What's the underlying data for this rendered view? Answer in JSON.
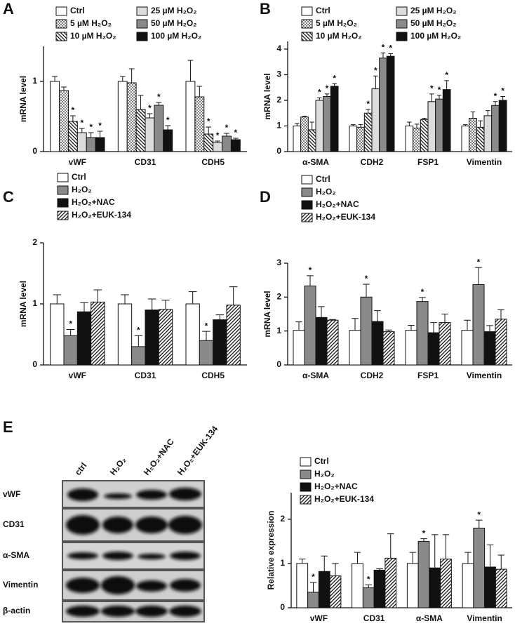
{
  "chart_data": [
    {
      "type": "bar",
      "panel": "A",
      "ylabel": "mRNA level",
      "categories": [
        "vWF",
        "CD31",
        "CDH5"
      ],
      "ylim": [
        0,
        1.5
      ],
      "yticks": [
        0,
        1
      ],
      "series": [
        {
          "name": "Ctrl",
          "color": "#ffffff",
          "values": [
            1,
            1,
            1
          ],
          "errors": [
            0.07,
            0.07,
            0.3
          ],
          "significance": [
            null,
            null,
            null
          ]
        },
        {
          "name": "5 µM H₂O₂",
          "color": "#ffffff",
          "pattern": "dots",
          "values": [
            0.87,
            0.98,
            0.78
          ],
          "errors": [
            0.05,
            0.2,
            0.15
          ],
          "significance": [
            null,
            null,
            null
          ]
        },
        {
          "name": "10 µM H₂O₂",
          "color": "#ffffff",
          "pattern": "hatch-back",
          "values": [
            0.43,
            0.6,
            0.25
          ],
          "errors": [
            0.08,
            0.2,
            0.1
          ],
          "significance": [
            "*",
            null,
            "*"
          ]
        },
        {
          "name": "25 µM H₂O₂",
          "color": "#dcdcdc",
          "values": [
            0.27,
            0.48,
            0.13
          ],
          "errors": [
            0.06,
            0.06,
            0.02
          ],
          "significance": [
            "*",
            "*",
            "*"
          ]
        },
        {
          "name": "50 µM H₂O₂",
          "color": "#8a8a8a",
          "values": [
            0.2,
            0.66,
            0.22
          ],
          "errors": [
            0.07,
            0.04,
            0.04
          ],
          "significance": [
            "*",
            "*",
            "*"
          ]
        },
        {
          "name": "100 µM H₂O₂",
          "color": "#111111",
          "values": [
            0.2,
            0.31,
            0.17
          ],
          "errors": [
            0.09,
            0.06,
            0.02
          ],
          "significance": [
            "*",
            "*",
            "*"
          ]
        }
      ]
    },
    {
      "type": "bar",
      "panel": "B",
      "ylabel": "mRNA level",
      "categories": [
        "α-SMA",
        "CDH2",
        "FSP1",
        "Vimentin"
      ],
      "ylim": [
        0,
        4.3
      ],
      "yticks": [
        0,
        1,
        2,
        3,
        4
      ],
      "series": [
        {
          "name": "Ctrl",
          "color": "#ffffff",
          "values": [
            1,
            1,
            1,
            1
          ],
          "errors": [
            0.1,
            0.05,
            0.15,
            0.05
          ],
          "significance": [
            null,
            null,
            null,
            null
          ]
        },
        {
          "name": "5 µM H₂O₂",
          "color": "#ffffff",
          "pattern": "dots",
          "values": [
            1.35,
            0.95,
            0.92,
            1.3
          ],
          "errors": [
            0.03,
            0.1,
            0.15,
            0.25
          ],
          "significance": [
            null,
            null,
            null,
            null
          ]
        },
        {
          "name": "10 µM H₂O₂",
          "color": "#ffffff",
          "pattern": "hatch-back",
          "values": [
            0.85,
            1.5,
            1.25,
            0.95
          ],
          "errors": [
            0.3,
            0.15,
            0.05,
            0.25
          ],
          "significance": [
            null,
            "*",
            null,
            null
          ]
        },
        {
          "name": "25 µM H₂O₂",
          "color": "#dcdcdc",
          "values": [
            2,
            2.45,
            1.95,
            1.4
          ],
          "errors": [
            0.1,
            0.5,
            0.3,
            0.2
          ],
          "significance": [
            "*",
            "*",
            "*",
            null
          ]
        },
        {
          "name": "50 µM H₂O₂",
          "color": "#8a8a8a",
          "values": [
            2.15,
            3.65,
            2.05,
            1.8
          ],
          "errors": [
            0.1,
            0.2,
            0.15,
            0.15
          ],
          "significance": [
            "*",
            "*",
            "*",
            "*"
          ]
        },
        {
          "name": "100 µM H₂O₂",
          "color": "#111111",
          "values": [
            2.55,
            3.72,
            2.42,
            2
          ],
          "errors": [
            0.1,
            0.1,
            0.35,
            0.15
          ],
          "significance": [
            "*",
            "*",
            "*",
            "*"
          ]
        }
      ]
    },
    {
      "type": "bar",
      "panel": "C",
      "ylabel": "mRNA level",
      "categories": [
        "vWF",
        "CD31",
        "CDH5"
      ],
      "ylim": [
        0,
        2
      ],
      "yticks": [
        0,
        1,
        2
      ],
      "series": [
        {
          "name": "Ctrl",
          "color": "#ffffff",
          "values": [
            1,
            1,
            1
          ],
          "errors": [
            0.15,
            0.15,
            0.2
          ],
          "significance": [
            null,
            null,
            null
          ]
        },
        {
          "name": "H₂O₂",
          "color": "#8a8a8a",
          "values": [
            0.48,
            0.3,
            0.4
          ],
          "errors": [
            0.1,
            0.18,
            0.15
          ],
          "significance": [
            "*",
            "*",
            "*"
          ]
        },
        {
          "name": "H₂O₂+NAC",
          "color": "#111111",
          "values": [
            0.87,
            0.9,
            0.74
          ],
          "errors": [
            0.15,
            0.18,
            0.08
          ],
          "significance": [
            null,
            null,
            null
          ]
        },
        {
          "name": "H₂O₂+EUK-134",
          "color": "#ffffff",
          "pattern": "hatch",
          "values": [
            1.03,
            0.91,
            0.98
          ],
          "errors": [
            0.2,
            0.15,
            0.3
          ],
          "significance": [
            null,
            null,
            null
          ]
        }
      ]
    },
    {
      "type": "bar",
      "panel": "D",
      "ylabel": "mRNA level",
      "categories": [
        "α-SMA",
        "CDH2",
        "FSP1",
        "Vimentin"
      ],
      "ylim": [
        0,
        3
      ],
      "yticks": [
        0,
        1,
        2,
        3
      ],
      "series": [
        {
          "name": "Ctrl",
          "color": "#ffffff",
          "values": [
            1.02,
            1.02,
            1.02,
            1.02
          ],
          "errors": [
            0.25,
            0.35,
            0.15,
            0.3
          ],
          "significance": [
            null,
            null,
            null,
            null
          ]
        },
        {
          "name": "H₂O₂",
          "color": "#8a8a8a",
          "values": [
            2.33,
            2,
            1.87,
            2.37
          ],
          "errors": [
            0.3,
            0.38,
            0.12,
            0.5
          ],
          "significance": [
            "*",
            "*",
            "*",
            "*"
          ]
        },
        {
          "name": "H₂O₂+NAC",
          "color": "#111111",
          "values": [
            1.4,
            1.28,
            0.95,
            0.98
          ],
          "errors": [
            0.32,
            0.32,
            0.3,
            0.18
          ],
          "significance": [
            null,
            null,
            null,
            null
          ]
        },
        {
          "name": "H₂O₂+EUK-134",
          "color": "#ffffff",
          "pattern": "hatch",
          "values": [
            1.32,
            0.98,
            1.25,
            1.35
          ],
          "errors": [
            0.02,
            0.05,
            0.25,
            0.28
          ],
          "significance": [
            null,
            null,
            null,
            null
          ]
        }
      ]
    },
    {
      "type": "bar",
      "ylabel": "Relative expression",
      "categories": [
        "vWF",
        "CD31",
        "α-SMA",
        "Vimentin"
      ],
      "ylim": [
        0,
        2.6
      ],
      "yticks": [
        0,
        1,
        2
      ],
      "series": [
        {
          "name": "Ctrl",
          "color": "#ffffff",
          "values": [
            1,
            1,
            1,
            1
          ],
          "errors": [
            0.1,
            0.25,
            0.25,
            0.25
          ],
          "significance": [
            null,
            null,
            null,
            null
          ]
        },
        {
          "name": "H₂O₂",
          "color": "#8a8a8a",
          "values": [
            0.35,
            0.45,
            1.5,
            1.8
          ],
          "errors": [
            0.22,
            0.07,
            0.06,
            0.18
          ],
          "significance": [
            "*",
            "*",
            "*",
            "*"
          ]
        },
        {
          "name": "H₂O₂+NAC",
          "color": "#111111",
          "values": [
            0.82,
            0.85,
            0.9,
            0.92
          ],
          "errors": [
            0.35,
            0.03,
            0.75,
            0.5
          ],
          "significance": [
            null,
            null,
            null,
            null
          ]
        },
        {
          "name": "H₂O₂+EUK-134",
          "color": "#ffffff",
          "pattern": "hatch",
          "values": [
            0.72,
            1.12,
            1.1,
            0.87
          ],
          "errors": [
            0.28,
            0.55,
            0.55,
            0.32
          ],
          "significance": [
            null,
            null,
            null,
            null
          ]
        }
      ]
    }
  ],
  "blot": {
    "panel": "E",
    "lanes": [
      "ctrl",
      "H₂O₂",
      "H₂O₂+NAC",
      "H₂O₂+EUK-134"
    ],
    "rows": [
      "vWF",
      "CD31",
      "α-SMA",
      "Vimentin",
      "β-actin"
    ]
  }
}
